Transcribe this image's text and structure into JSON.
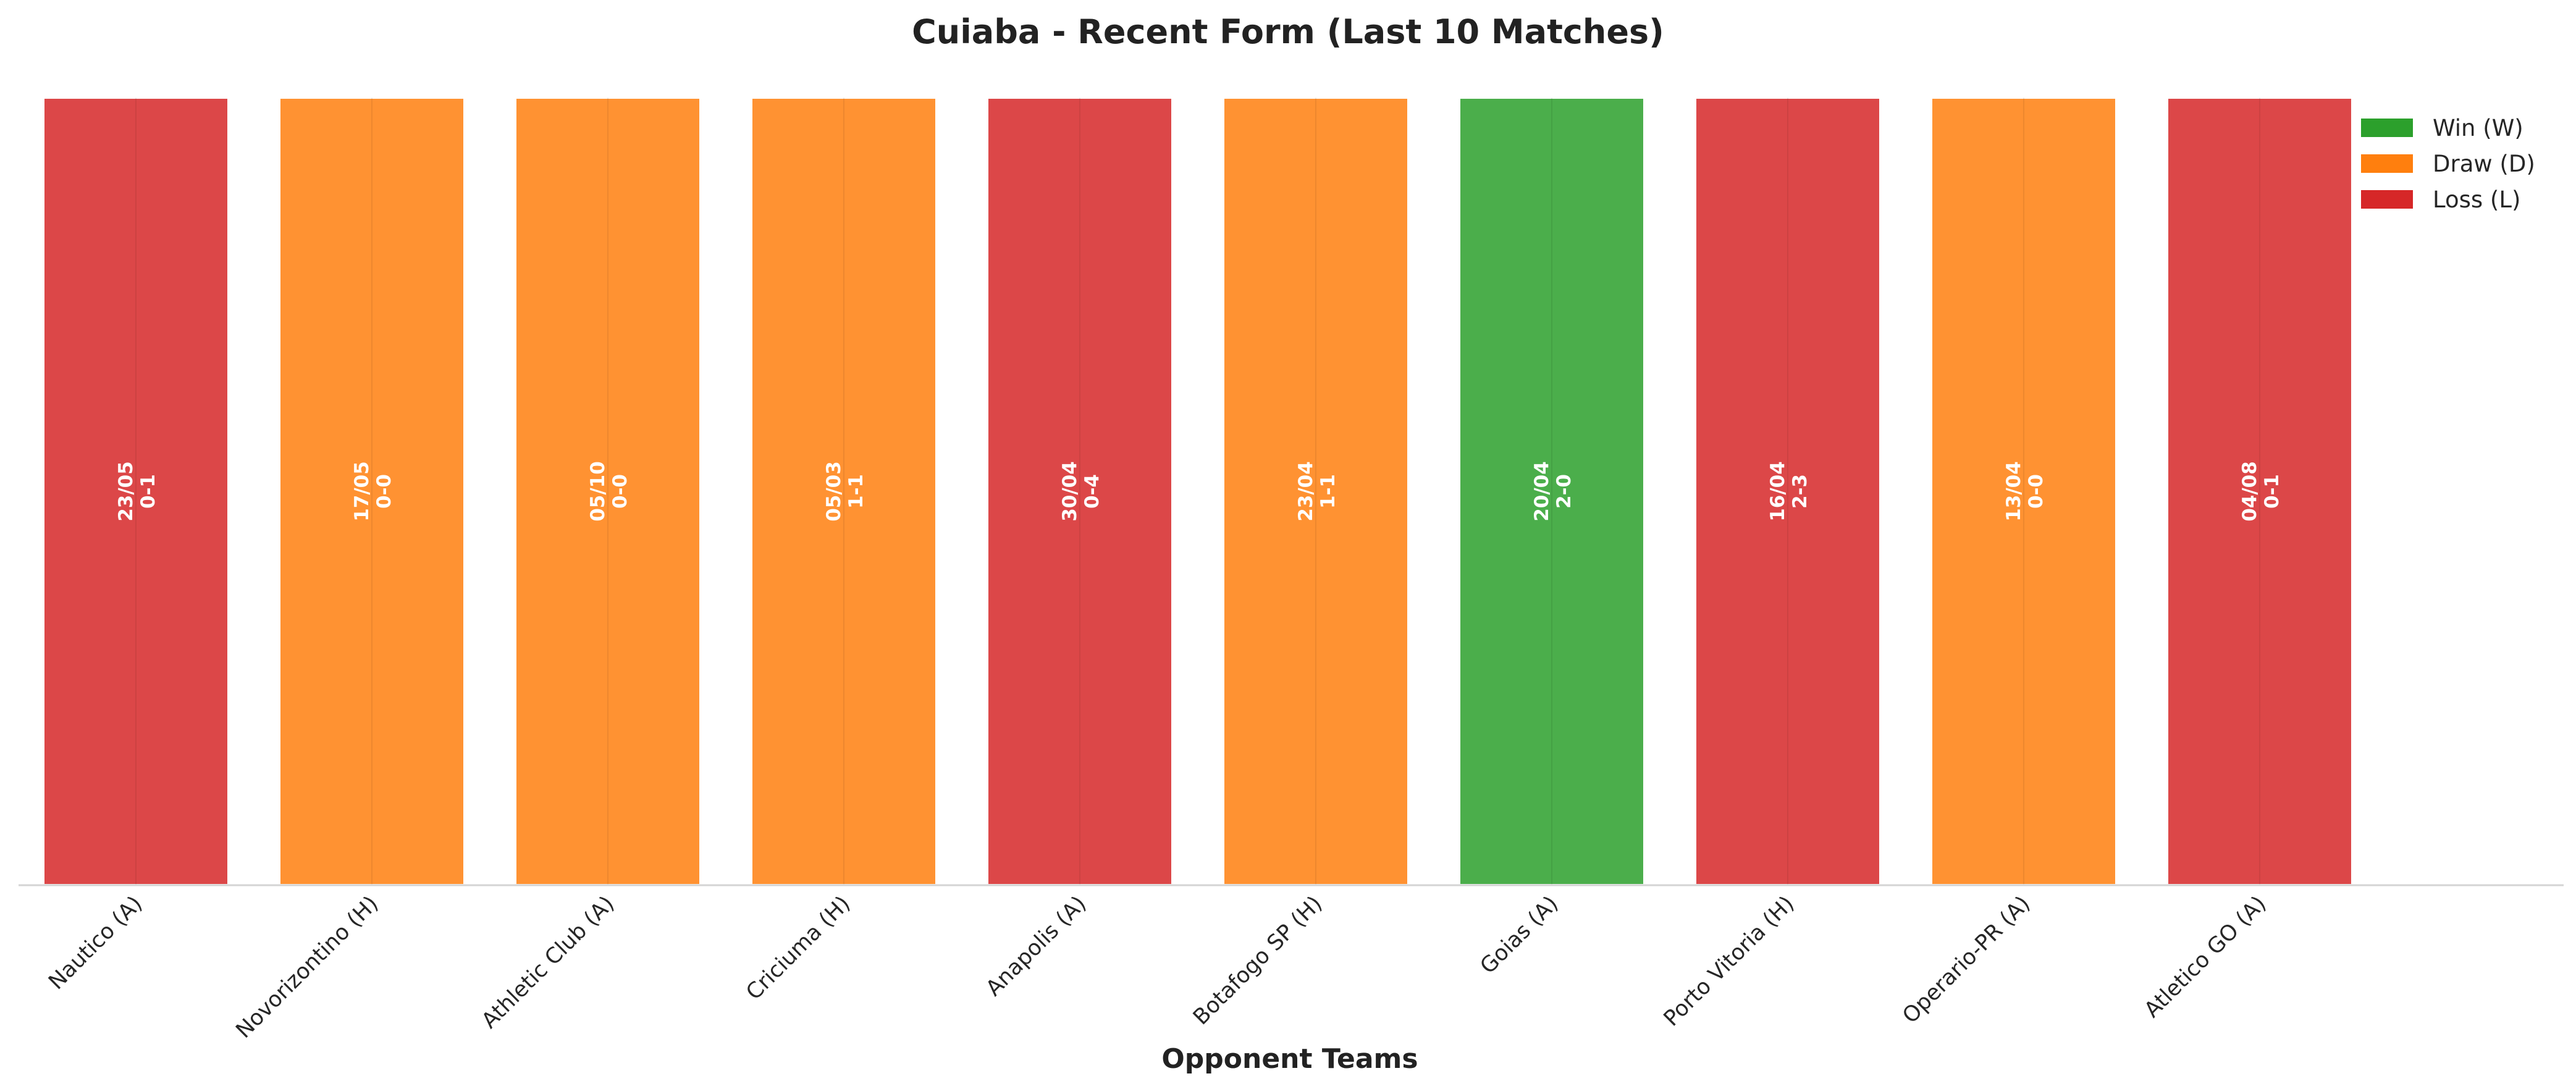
{
  "chart_data": {
    "type": "bar",
    "title": "Cuiaba - Recent Form (Last 10 Matches)",
    "xlabel": "Opponent Teams",
    "ylabel": "",
    "ylim": [
      0,
      1
    ],
    "grid": false,
    "legend_position": "top-right",
    "categories": [
      "Nautico (A)",
      "Novorizontino (H)",
      "Athletic Club (A)",
      "Criciuma (H)",
      "Anapolis (A)",
      "Botafogo SP (H)",
      "Goias (A)",
      "Porto Vitoria (H)",
      "Operario-PR (A)",
      "Atletico GO (A)"
    ],
    "values": [
      1,
      1,
      1,
      1,
      1,
      1,
      1,
      1,
      1,
      1
    ],
    "results": [
      "L",
      "D",
      "D",
      "D",
      "L",
      "D",
      "W",
      "L",
      "D",
      "L"
    ],
    "dates": [
      "23/05",
      "17/05",
      "05/10",
      "05/03",
      "30/04",
      "23/04",
      "20/04",
      "16/04",
      "13/04",
      "04/08"
    ],
    "scores": [
      "0-1",
      "0-0",
      "0-0",
      "1-1",
      "0-4",
      "1-1",
      "2-0",
      "2-3",
      "0-0",
      "0-1"
    ],
    "legend": [
      {
        "key": "W",
        "label": "Win (W)",
        "color": "#2ca02c"
      },
      {
        "key": "D",
        "label": "Draw (D)",
        "color": "#ff7f0e"
      },
      {
        "key": "L",
        "label": "Loss (L)",
        "color": "#d62728"
      }
    ]
  }
}
